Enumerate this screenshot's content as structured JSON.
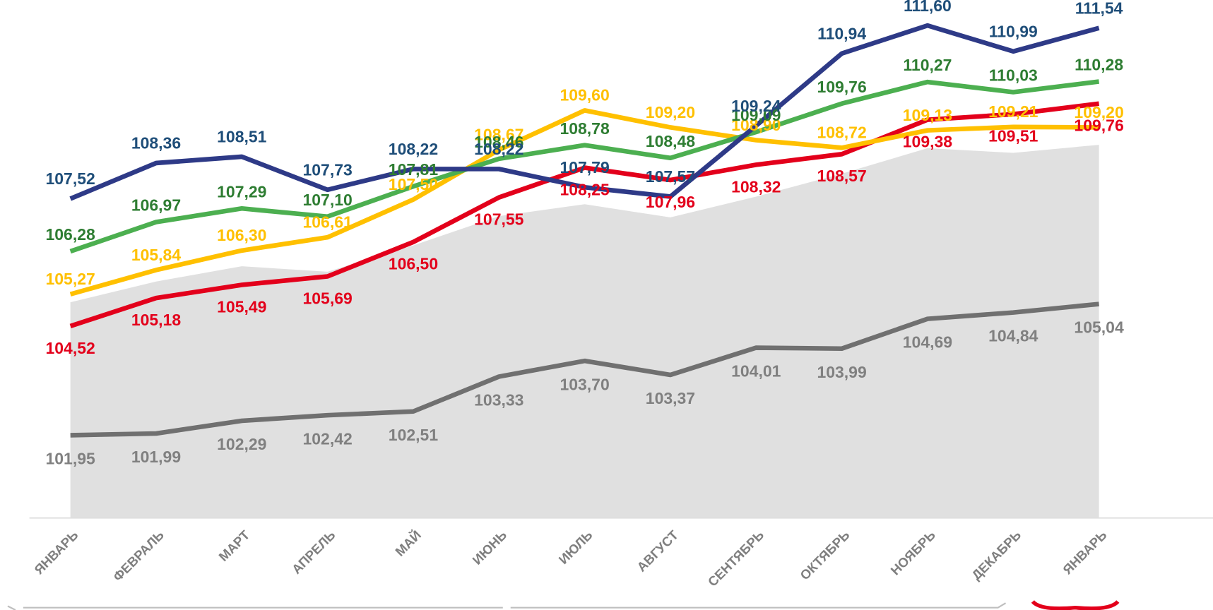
{
  "chart_data": {
    "type": "line",
    "categories": [
      "ЯНВАРЬ",
      "ФЕВРАЛЬ",
      "МАРТ",
      "АПРЕЛЬ",
      "МАЙ",
      "ИЮНЬ",
      "ИЮЛЬ",
      "АВГУСТ",
      "СЕНТЯБРЬ",
      "ОКТЯБРЬ",
      "НОЯБРЬ",
      "ДЕКАБРЬ",
      "ЯНВАРЬ"
    ],
    "ylim": [
      100,
      112.2
    ],
    "series": [
      {
        "type": "area",
        "color": "#e0e0e0",
        "values": [
          105.08,
          105.57,
          105.93,
          105.8,
          106.42,
          107.11,
          107.39,
          107.08,
          107.57,
          108.11,
          108.71,
          108.6,
          108.79
        ]
      },
      {
        "color": "#707070",
        "label_color": "#808080",
        "values": [
          101.95,
          101.99,
          102.29,
          102.42,
          102.51,
          103.33,
          103.7,
          103.37,
          104.01,
          103.99,
          104.69,
          104.84,
          105.04
        ],
        "value_labels": [
          "101,95",
          "101,99",
          "102,29",
          "102,42",
          "102,51",
          "103,33",
          "103,70",
          "103,37",
          "104,01",
          "103,99",
          "104,69",
          "104,84",
          "105,04"
        ]
      },
      {
        "color": "#e3001b",
        "label_color": "#e3001b",
        "values": [
          104.52,
          105.18,
          105.49,
          105.69,
          106.5,
          107.55,
          108.25,
          107.96,
          108.32,
          108.57,
          109.38,
          109.51,
          109.76
        ],
        "value_labels": [
          "104,52",
          "105,18",
          "105,49",
          "105,69",
          "106,50",
          "107,55",
          "108,25",
          "107,96",
          "108,32",
          "108,57",
          "109,38",
          "109,51",
          "109,76"
        ]
      },
      {
        "color": "#ffc000",
        "label_color": "#ffc000",
        "values": [
          105.27,
          105.84,
          106.3,
          106.61,
          107.5,
          108.67,
          109.6,
          109.2,
          108.9,
          108.72,
          109.13,
          109.21,
          109.2
        ],
        "value_labels": [
          "105,27",
          "105,84",
          "106,30",
          "106,61",
          "107,50",
          "108,67",
          "109,60",
          "109,20",
          "108,90",
          "108,72",
          "109,13",
          "109,21",
          "109,20"
        ]
      },
      {
        "color": "#4caf50",
        "label_color": "#2e7d32",
        "values": [
          106.28,
          106.97,
          107.29,
          107.1,
          107.81,
          108.46,
          108.78,
          108.48,
          109.09,
          109.76,
          110.27,
          110.03,
          110.28
        ],
        "value_labels": [
          "106,28",
          "106,97",
          "107,29",
          "107,10",
          "107,81",
          "108,46",
          "108,78",
          "108,48",
          "109,09",
          "109,76",
          "110,27",
          "110,03",
          "110,28"
        ]
      },
      {
        "color": "#2e3a87",
        "label_color": "#1f4e79",
        "values": [
          107.52,
          108.36,
          108.51,
          107.73,
          108.22,
          108.22,
          107.79,
          107.57,
          109.24,
          110.94,
          111.6,
          110.99,
          111.54
        ],
        "value_labels": [
          "107,52",
          "108,36",
          "108,51",
          "107,73",
          "108,22",
          "108,22",
          "107,79",
          "107,57",
          "109,24",
          "110,94",
          "111,60",
          "110,99",
          "111,54"
        ]
      }
    ]
  }
}
